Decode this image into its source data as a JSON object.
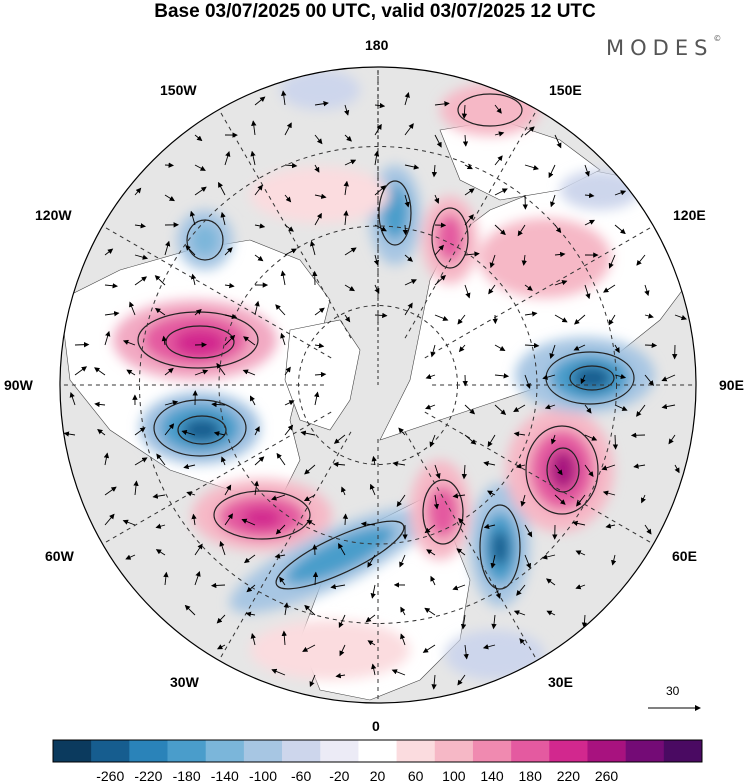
{
  "title": "Base 03/07/2025 00 UTC, valid 03/07/2025 12 UTC",
  "brand": "MODES",
  "brand_mark": "©",
  "lon_labels": {
    "top": "180",
    "bottom": "0",
    "left": "90W",
    "right": "90E",
    "ul1": "150W",
    "ul2": "120W",
    "ur1": "150E",
    "ur2": "120E",
    "ll1": "60W",
    "ll2": "30W",
    "lr1": "60E",
    "lr2": "30E"
  },
  "vector_scale": "30",
  "colorbar": {
    "ticks": [
      "-260",
      "-220",
      "-180",
      "-140",
      "-100",
      "-60",
      "-20",
      "20",
      "60",
      "100",
      "140",
      "180",
      "220",
      "260"
    ],
    "colors": [
      "#0b3a5e",
      "#165d8f",
      "#2a83b9",
      "#4a9dcb",
      "#7bb6da",
      "#a7c6e3",
      "#cdd6ec",
      "#ecebf6",
      "#ffffff",
      "#fbdcdf",
      "#f6b8c6",
      "#f08ab0",
      "#e45aa0",
      "#d2288e",
      "#a8127f",
      "#740b76",
      "#4a0a62"
    ]
  },
  "colors": {
    "ocean": "#e6e6e6",
    "land": "#ffffff",
    "positive": "#e0569c",
    "negative": "#2a7bb4"
  }
}
